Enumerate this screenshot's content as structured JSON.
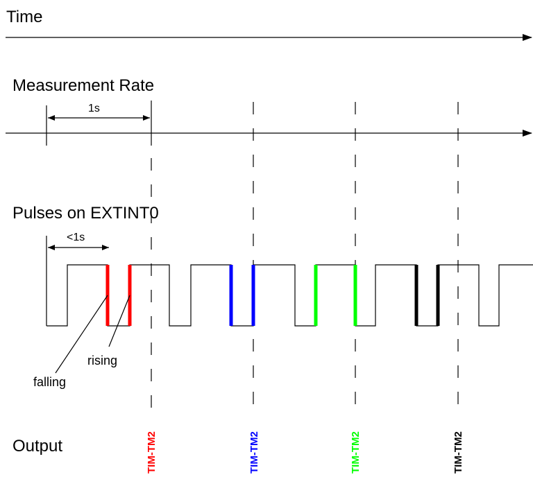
{
  "sections": {
    "time": "Time",
    "measurement_rate": "Measurement Rate",
    "pulses": "Pulses on EXTINT0",
    "output": "Output"
  },
  "annotations": {
    "period_1s": "1s",
    "period_lt_1s": "<1s",
    "falling": "falling",
    "rising": "rising"
  },
  "outputs": [
    {
      "label": "TIM-TM2",
      "color": "#ff0000"
    },
    {
      "label": "TIM-TM2",
      "color": "#0000ff"
    },
    {
      "label": "TIM-TM2",
      "color": "#00ff00"
    },
    {
      "label": "TIM-TM2",
      "color": "#000000"
    }
  ],
  "edge_colors": [
    "#ff0000",
    "#0000ff",
    "#00ff00",
    "#000000"
  ]
}
